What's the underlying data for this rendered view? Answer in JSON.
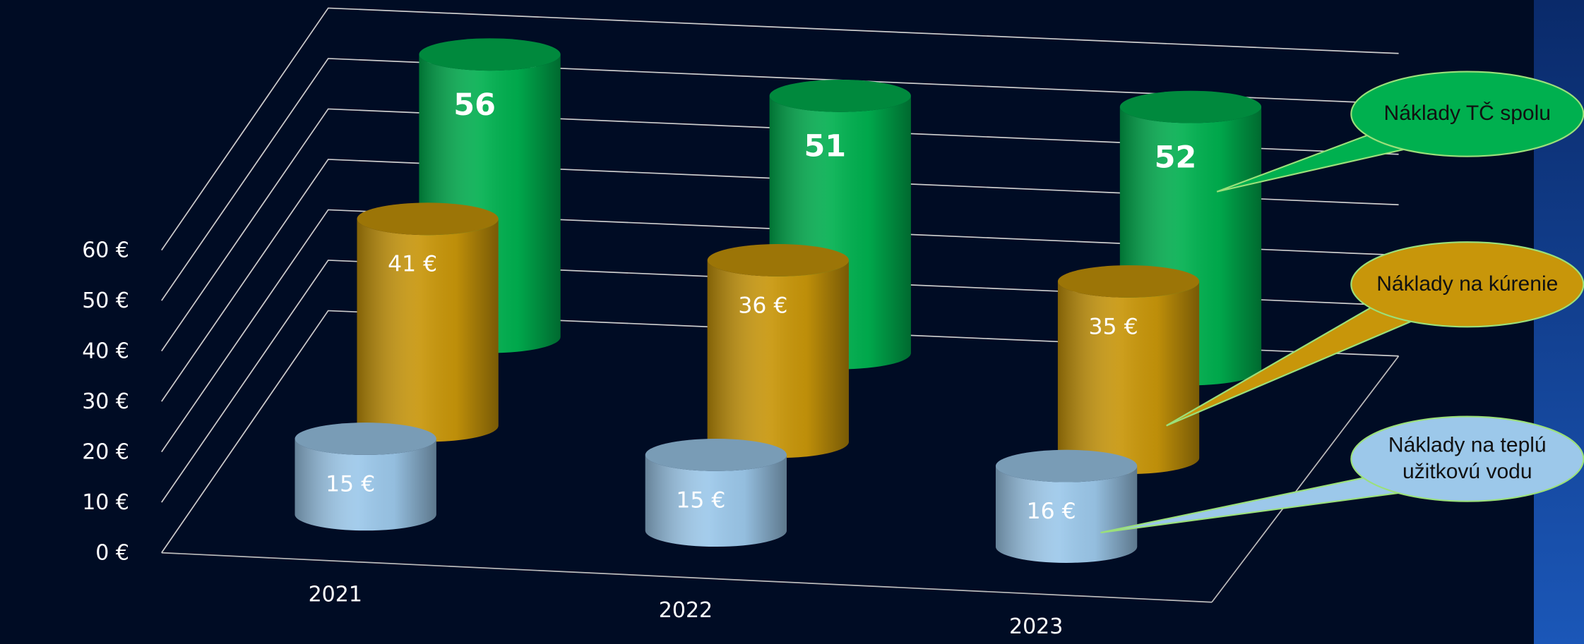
{
  "chart_data": {
    "type": "cylinder3d",
    "categories": [
      "2021",
      "2022",
      "2023"
    ],
    "series": [
      {
        "name": "Náklady na teplú užitkovú vodu",
        "color": "#9cc8ea",
        "values": [
          15,
          15,
          16
        ],
        "value_labels": [
          "15 €",
          "15 €",
          "16 €"
        ]
      },
      {
        "name": "Náklady na kúrenie",
        "color": "#c8960a",
        "values": [
          41,
          36,
          35
        ],
        "value_labels": [
          "41 €",
          "36 €",
          "35 €"
        ]
      },
      {
        "name": "Náklady TČ spolu",
        "color": "#00b04f",
        "values": [
          56,
          51,
          52
        ]
      }
    ],
    "ylim": [
      0,
      60
    ],
    "yticks": [
      {
        "value": 0,
        "label": "0 €"
      },
      {
        "value": 10,
        "label": "10 €"
      },
      {
        "value": 20,
        "label": "20 €"
      },
      {
        "value": 30,
        "label": "30 €"
      },
      {
        "value": 40,
        "label": "40 €"
      },
      {
        "value": 50,
        "label": "50 €"
      },
      {
        "value": 60,
        "label": "60 €"
      }
    ],
    "grid": true
  }
}
